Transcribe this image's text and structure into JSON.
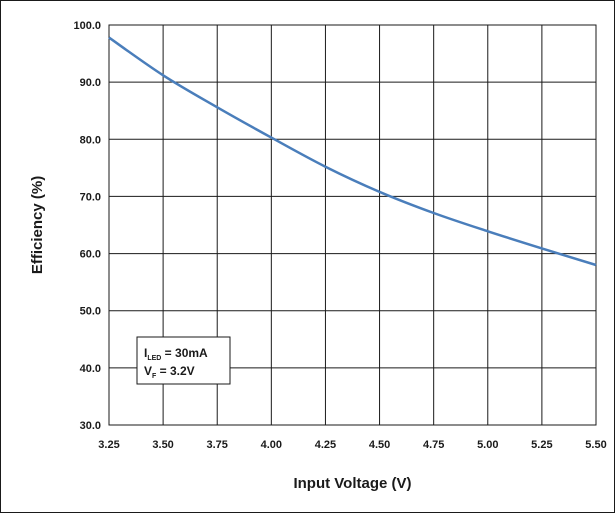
{
  "chart_data": {
    "type": "line",
    "title": "",
    "xlabel": "Input Voltage (V)",
    "ylabel": "Efficiency (%)",
    "xlim": [
      3.25,
      5.5
    ],
    "ylim": [
      30.0,
      100.0
    ],
    "grid": true,
    "x_ticks": [
      "3.25",
      "3.50",
      "3.75",
      "4.00",
      "4.25",
      "4.50",
      "4.75",
      "5.00",
      "5.25",
      "5.50"
    ],
    "y_ticks": [
      "30.0",
      "40.0",
      "50.0",
      "60.0",
      "70.0",
      "80.0",
      "90.0",
      "100.0"
    ],
    "series": [
      {
        "color": "#4a7ebb",
        "x": [
          3.25,
          3.5,
          3.75,
          4.0,
          4.25,
          4.5,
          4.75,
          5.0,
          5.25,
          5.5
        ],
        "y": [
          97.8,
          91.2,
          85.6,
          80.3,
          75.2,
          70.8,
          67.1,
          63.9,
          60.9,
          58.0
        ]
      }
    ],
    "annotation": {
      "line1_main": "I",
      "line1_sub": "LED",
      "line1_rest": " = 30mA",
      "line2_main": "V",
      "line2_sub": "F",
      "line2_rest": " = 3.2V"
    }
  }
}
